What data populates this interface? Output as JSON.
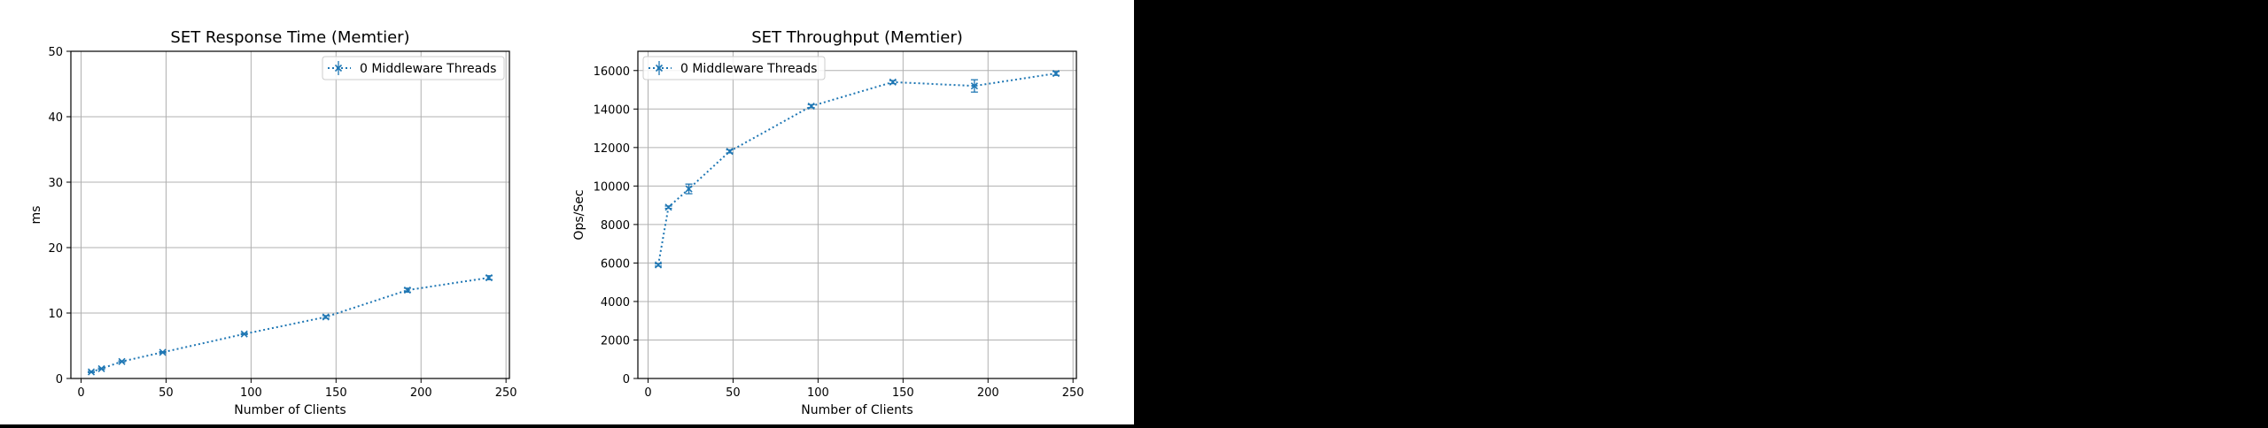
{
  "colors": {
    "series": "#1f77b4",
    "grid": "#b0b0b0",
    "background_right": "#000000"
  },
  "chart_data": [
    {
      "type": "line",
      "title": "SET Response Time (Memtier)",
      "xlabel": "Number of Clients",
      "ylabel": "ms",
      "xlim": [
        -6,
        252
      ],
      "ylim": [
        0,
        50
      ],
      "xticks": [
        0,
        50,
        100,
        150,
        200,
        250
      ],
      "yticks": [
        0,
        10,
        20,
        30,
        40,
        50
      ],
      "grid": true,
      "legend_position": "top-right",
      "series": [
        {
          "name": "0 Middleware Threads",
          "x": [
            6,
            12,
            24,
            48,
            96,
            144,
            192,
            240
          ],
          "y": [
            1.0,
            1.5,
            2.6,
            4.0,
            6.8,
            9.4,
            13.5,
            15.4
          ],
          "yerr": [
            0.1,
            0.1,
            0.1,
            0.1,
            0.1,
            0.2,
            0.3,
            0.3
          ]
        }
      ]
    },
    {
      "type": "line",
      "title": "SET Throughput (Memtier)",
      "xlabel": "Number of Clients",
      "ylabel": "Ops/Sec",
      "xlim": [
        -6,
        252
      ],
      "ylim": [
        0,
        17000
      ],
      "xticks": [
        0,
        50,
        100,
        150,
        200,
        250
      ],
      "yticks": [
        0,
        2000,
        4000,
        6000,
        8000,
        10000,
        12000,
        14000,
        16000
      ],
      "grid": true,
      "legend_position": "top-left",
      "series": [
        {
          "name": "0 Middleware Threads",
          "x": [
            6,
            12,
            24,
            48,
            96,
            144,
            192,
            240
          ],
          "y": [
            5900,
            8900,
            9850,
            11800,
            14150,
            15400,
            15200,
            15850
          ],
          "yerr": [
            60,
            60,
            250,
            80,
            80,
            80,
            320,
            100
          ]
        }
      ]
    }
  ]
}
